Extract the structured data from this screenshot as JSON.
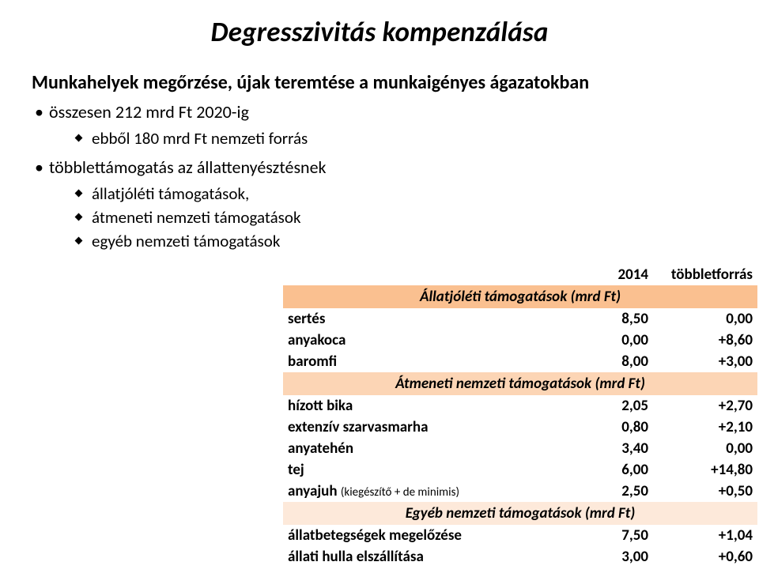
{
  "title": "Degresszivitás kompenzálása",
  "subtitle": "Munkahelyek megőrzése, újak teremtése a munkaigényes ágazatokban",
  "bullets": {
    "b1": "összesen 212 mrd Ft 2020-ig",
    "b1a": "ebből 180 mrd Ft nemzeti forrás",
    "b2": "többlettámogatás az állattenyésztésnek",
    "b2a": "állatjóléti támogatások,",
    "b2b": "átmeneti nemzeti támogatások",
    "b2c": "egyéb nemzeti támogatások"
  },
  "table": {
    "head_year": "2014",
    "head_extra": "többletforrás",
    "section1": "Állatjóléti támogatások (mrd Ft)",
    "section2": "Átmeneti nemzeti támogatások (mrd Ft)",
    "section3": "Egyéb nemzeti támogatások (mrd Ft)",
    "rows": {
      "r1": {
        "label": "sertés",
        "v1": "8,50",
        "v2": "0,00"
      },
      "r2": {
        "label": "anyakoca",
        "v1": "0,00",
        "v2": "+8,60"
      },
      "r3": {
        "label": "baromfi",
        "v1": "8,00",
        "v2": "+3,00"
      },
      "r4": {
        "label": "hízott bika",
        "v1": "2,05",
        "v2": "+2,70"
      },
      "r5": {
        "label": "extenzív szarvasmarha",
        "v1": "0,80",
        "v2": "+2,10"
      },
      "r6": {
        "label": "anyatehén",
        "v1": "3,40",
        "v2": "0,00"
      },
      "r7": {
        "label": "tej",
        "v1": "6,00",
        "v2": "+14,80"
      },
      "r8": {
        "label_main": "anyajuh ",
        "label_small": "(kiegészítő + de minimis)",
        "v1": "2,50",
        "v2": "+0,50"
      },
      "r9": {
        "label": "állatbetegségek megelőzése",
        "v1": "7,50",
        "v2": "+1,04"
      },
      "r10": {
        "label": "állati hulla elszállítása",
        "v1": "3,00",
        "v2": "+0,60"
      }
    },
    "colors": {
      "section1_bg": "#fac090",
      "section2_bg": "#fcd5b5",
      "section3_bg": "#fde9da"
    }
  }
}
